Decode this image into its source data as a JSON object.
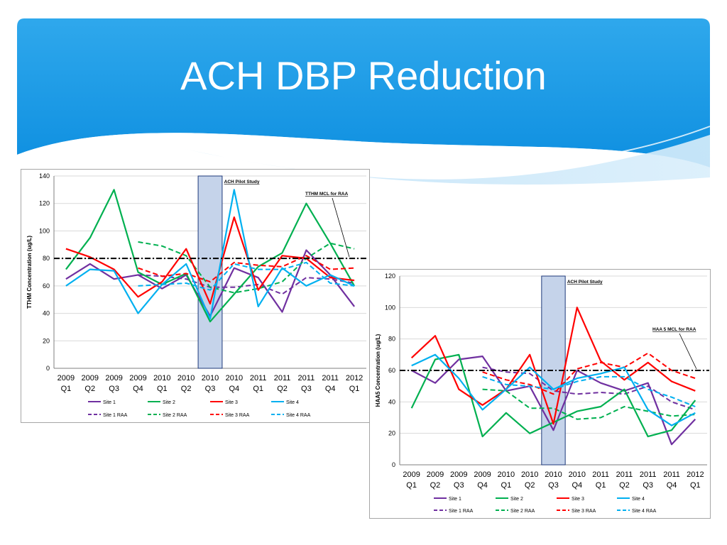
{
  "slide": {
    "title": "ACH DBP Reduction"
  },
  "colors": {
    "site1": "#7030a0",
    "site2": "#00b050",
    "site3": "#ff0000",
    "site4": "#00b0f0",
    "header_blue": "#1ea0e8",
    "study_fill": "#c5d3ea",
    "study_stroke": "#1f3a7a"
  },
  "chart_data": [
    {
      "type": "line",
      "ylabel": "TTHM Concentration (ug/L)",
      "ylim": [
        0,
        140
      ],
      "yticks": [
        0,
        20,
        40,
        60,
        80,
        100,
        120,
        140
      ],
      "categories": [
        "2009 Q1",
        "2009 Q2",
        "2009 Q3",
        "2009 Q4",
        "2010 Q1",
        "2010 Q2",
        "2010 Q3",
        "2010 Q4",
        "2011 Q1",
        "2011 Q2",
        "2011 Q3",
        "2011 Q4",
        "2012 Q1"
      ],
      "mcl": {
        "value": 80,
        "label": "TTHM MCL for RAA"
      },
      "study": {
        "label": "ACH Pilot Study",
        "category": "2010 Q3"
      },
      "grid": "horizontal",
      "legend_position": "bottom",
      "series": [
        {
          "name": "Site 1",
          "color_key": "site1",
          "dash": false,
          "values": [
            65,
            76,
            65,
            68,
            58,
            68,
            38,
            73,
            66,
            41,
            86,
            68,
            45
          ]
        },
        {
          "name": "Site 1 RAA",
          "color_key": "site1",
          "dash": true,
          "values": [
            null,
            null,
            null,
            68,
            67,
            65,
            59,
            59,
            61,
            54,
            66,
            65,
            62
          ]
        },
        {
          "name": "Site 2",
          "color_key": "site2",
          "dash": false,
          "values": [
            72,
            95,
            130,
            70,
            61,
            69,
            34,
            54,
            74,
            84,
            120,
            91,
            60
          ]
        },
        {
          "name": "Site 2 RAA",
          "color_key": "site2",
          "dash": true,
          "values": [
            null,
            null,
            null,
            92,
            89,
            82,
            59,
            55,
            58,
            63,
            80,
            91,
            87
          ]
        },
        {
          "name": "Site 3",
          "color_key": "site3",
          "dash": false,
          "values": [
            87,
            81,
            72,
            52,
            63,
            87,
            47,
            110,
            57,
            82,
            80,
            66,
            64
          ]
        },
        {
          "name": "Site 3 RAA",
          "color_key": "site3",
          "dash": true,
          "values": [
            null,
            null,
            null,
            73,
            67,
            69,
            63,
            77,
            75,
            74,
            82,
            72,
            73
          ]
        },
        {
          "name": "Site 4",
          "color_key": "site4",
          "dash": false,
          "values": [
            60,
            72,
            71,
            40,
            61,
            76,
            36,
            130,
            45,
            73,
            60,
            68,
            60
          ]
        },
        {
          "name": "Site 4 RAA",
          "color_key": "site4",
          "dash": true,
          "values": [
            null,
            null,
            null,
            60,
            61,
            62,
            57,
            76,
            72,
            72,
            77,
            62,
            60
          ]
        }
      ]
    },
    {
      "type": "line",
      "ylabel": "HAA5 Concentration (ug/L)",
      "ylim": [
        0,
        120
      ],
      "yticks": [
        0,
        20,
        40,
        60,
        80,
        100,
        120
      ],
      "categories": [
        "2009 Q1",
        "2009 Q2",
        "2009 Q3",
        "2009 Q4",
        "2010 Q1",
        "2010 Q2",
        "2010 Q3",
        "2010 Q4",
        "2011 Q1",
        "2011 Q2",
        "2011 Q3",
        "2011 Q4",
        "2012 Q1"
      ],
      "mcl": {
        "value": 60,
        "label": "HAA 5 MCL for RAA"
      },
      "study": {
        "label": "ACH Pilot Study",
        "category": "2010 Q3"
      },
      "grid": "horizontal",
      "legend_position": "bottom",
      "series": [
        {
          "name": "Site 1",
          "color_key": "site1",
          "dash": false,
          "values": [
            60,
            52,
            67,
            69,
            47,
            50,
            22,
            60,
            52,
            47,
            52,
            13,
            29
          ]
        },
        {
          "name": "Site 1 RAA",
          "color_key": "site1",
          "dash": true,
          "values": [
            null,
            null,
            null,
            62,
            59,
            58,
            47,
            45,
            46,
            45,
            50,
            40,
            35
          ]
        },
        {
          "name": "Site 2",
          "color_key": "site2",
          "dash": false,
          "values": [
            36,
            67,
            70,
            18,
            33,
            20,
            27,
            34,
            37,
            48,
            18,
            22,
            41
          ]
        },
        {
          "name": "Site 2 RAA",
          "color_key": "site2",
          "dash": true,
          "values": [
            null,
            null,
            null,
            48,
            47,
            36,
            36,
            29,
            30,
            37,
            34,
            31,
            32
          ]
        },
        {
          "name": "Site 3",
          "color_key": "site3",
          "dash": false,
          "values": [
            68,
            82,
            48,
            38,
            48,
            70,
            26,
            100,
            66,
            54,
            65,
            53,
            47
          ]
        },
        {
          "name": "Site 3 RAA",
          "color_key": "site3",
          "dash": true,
          "values": [
            null,
            null,
            null,
            59,
            54,
            51,
            45,
            61,
            65,
            62,
            71,
            60,
            55
          ]
        },
        {
          "name": "Site 4",
          "color_key": "site4",
          "dash": false,
          "values": [
            63,
            70,
            55,
            35,
            48,
            62,
            48,
            55,
            58,
            62,
            35,
            25,
            33
          ]
        },
        {
          "name": "Site 4 RAA",
          "color_key": "site4",
          "dash": true,
          "values": [
            null,
            null,
            null,
            56,
            51,
            50,
            48,
            53,
            56,
            56,
            48,
            43,
            37
          ]
        }
      ]
    }
  ]
}
